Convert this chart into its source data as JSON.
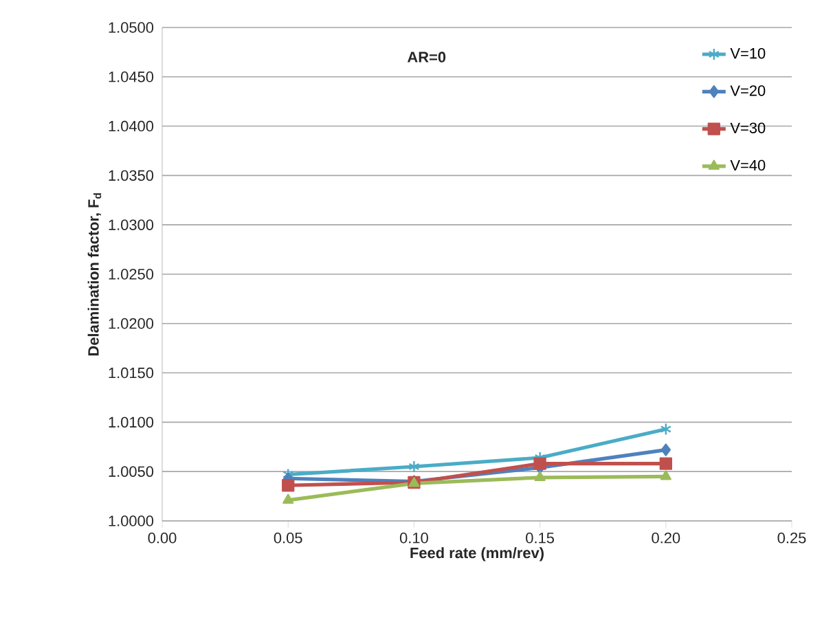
{
  "chart_data": {
    "type": "line",
    "xlabel": "Feed rate (mm/rev)",
    "ylabel": "Delamination factor, F$_{d}$",
    "annotations": [
      "AR=0"
    ],
    "x": [
      0.05,
      0.1,
      0.15,
      0.2
    ],
    "series": [
      {
        "name": "V=10",
        "color": "#4bacc6",
        "marker": "cross",
        "values": [
          1.0047,
          1.0055,
          1.0064,
          1.0093
        ]
      },
      {
        "name": "V=20",
        "color": "#4f81bd",
        "marker": "diamond",
        "values": [
          1.0043,
          1.004,
          1.0054,
          1.0072
        ]
      },
      {
        "name": "V=30",
        "color": "#c0504d",
        "marker": "square",
        "values": [
          1.0036,
          1.0039,
          1.0058,
          1.0058
        ]
      },
      {
        "name": "V=40",
        "color": "#9bbb59",
        "marker": "triangle",
        "values": [
          1.0021,
          1.0038,
          1.0044,
          1.0045
        ]
      }
    ],
    "xlim": [
      0,
      0.25
    ],
    "xticks": [
      {
        "value": 0,
        "label": "0.00"
      },
      {
        "value": 0.05,
        "label": "0.05"
      },
      {
        "value": 0.1,
        "label": "0.10"
      },
      {
        "value": 0.15,
        "label": "0.15"
      },
      {
        "value": 0.2,
        "label": "0.20"
      },
      {
        "value": 0.25,
        "label": "0.25"
      }
    ],
    "ylim": [
      1.0,
      1.05
    ],
    "yticks": [
      {
        "value": 1.0,
        "label": "1.0000"
      },
      {
        "value": 1.005,
        "label": "1.0050"
      },
      {
        "value": 1.01,
        "label": "1.0100"
      },
      {
        "value": 1.015,
        "label": "1.0150"
      },
      {
        "value": 1.02,
        "label": "1.0200"
      },
      {
        "value": 1.025,
        "label": "1.0250"
      },
      {
        "value": 1.03,
        "label": "1.0300"
      },
      {
        "value": 1.035,
        "label": "1.0350"
      },
      {
        "value": 1.04,
        "label": "1.0400"
      },
      {
        "value": 1.045,
        "label": "1.0450"
      },
      {
        "value": 1.05,
        "label": "1.0500"
      }
    ],
    "grid": "y",
    "legend": "top right",
    "line_style": "solid"
  }
}
